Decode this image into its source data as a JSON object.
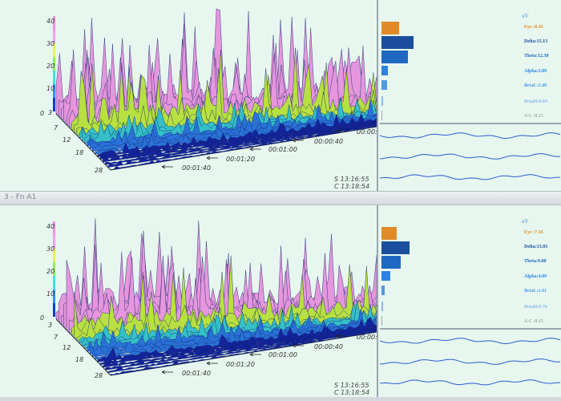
{
  "window_title": "3 - Fn A1",
  "colors": {
    "eye": "#e08a2a",
    "delta": "#1b4f9e",
    "theta": "#1f68c2",
    "alpha": "#2f82e4",
    "betal": "#5098e8",
    "betah": "#8cb8ec",
    "ac": "#a8a8a8",
    "wave": "#2a5ccf"
  },
  "panels": [
    {
      "id": "top",
      "y_ticks": [
        "40",
        "30",
        "20",
        "10",
        "0"
      ],
      "depth_ticks": [
        "3",
        "7",
        "12",
        "18",
        "28"
      ],
      "time_ticks": [
        "00:00:",
        "00:00:40",
        "00:01:00",
        "00:01:20",
        "00:01:40"
      ],
      "start_time": "S 13:16:55",
      "current_time": "C 13:18:54",
      "unit": "uV",
      "bands": [
        {
          "label": "Eye :8.45",
          "value": 8.45,
          "color": "#e08a2a"
        },
        {
          "label": "Delta:15.13",
          "value": 15.13,
          "color": "#1b4f9e"
        },
        {
          "label": "Theta:12.30",
          "value": 12.3,
          "color": "#1f68c2"
        },
        {
          "label": "Alpha:2.89",
          "value": 2.89,
          "color": "#2f82e4"
        },
        {
          "label": "BetaL:2.48",
          "value": 2.48,
          "color": "#5098e8"
        },
        {
          "label": "BetaH:0.84",
          "value": 0.84,
          "color": "#8cb8ec"
        },
        {
          "label": "A C :0.15",
          "value": 0.15,
          "color": "#a8a8a8"
        }
      ]
    },
    {
      "id": "bottom",
      "y_ticks": [
        "40",
        "30",
        "20",
        "10",
        "0"
      ],
      "depth_ticks": [
        "3",
        "7",
        "12",
        "18",
        "28"
      ],
      "time_ticks": [
        "00:00:",
        "00:00:40",
        "00:01:00",
        "00:01:20",
        "00:01:40"
      ],
      "start_time": "S 13:16:55",
      "current_time": "C 13:18:54",
      "unit": "uV",
      "bands": [
        {
          "label": "Eye :7.16",
          "value": 7.16,
          "color": "#e08a2a"
        },
        {
          "label": "Delta:13.03",
          "value": 13.03,
          "color": "#1b4f9e"
        },
        {
          "label": "Theta:9.00",
          "value": 9.0,
          "color": "#1f68c2"
        },
        {
          "label": "Alpha:4.09",
          "value": 4.09,
          "color": "#2f82e4"
        },
        {
          "label": "BetaL:1.61",
          "value": 1.61,
          "color": "#5098e8"
        },
        {
          "label": "BetaH:0.76",
          "value": 0.76,
          "color": "#8cb8ec"
        },
        {
          "label": "A C :0.15",
          "value": 0.15,
          "color": "#a8a8a8"
        }
      ]
    }
  ]
}
